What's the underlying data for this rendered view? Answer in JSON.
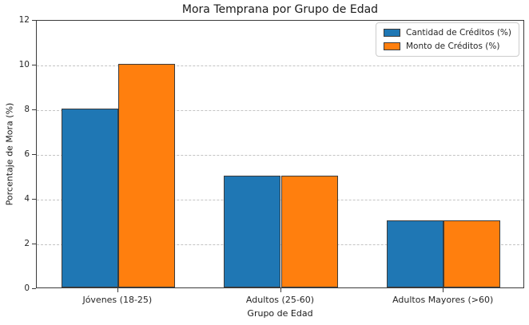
{
  "chart_data": {
    "type": "bar",
    "title": "Mora Temprana por Grupo de Edad",
    "xlabel": "Grupo de Edad",
    "ylabel": "Porcentaje de Mora (%)",
    "categories": [
      "Jóvenes (18-25)",
      "Adultos (25-60)",
      "Adultos Mayores (>60)"
    ],
    "series": [
      {
        "name": "Cantidad de Créditos (%)",
        "color": "#1f77b4",
        "values": [
          8,
          5,
          3
        ]
      },
      {
        "name": "Monto de Créditos (%)",
        "color": "#ff7f0e",
        "values": [
          10,
          5,
          3
        ]
      }
    ],
    "ylim": [
      0,
      12
    ],
    "yticks": [
      0,
      2,
      4,
      6,
      8,
      10,
      12
    ],
    "grid": "horizontal-dashed",
    "legend_position": "upper-right",
    "bar_edge_color": "#3b3b3b",
    "grid_color": "#c4c4c4"
  }
}
